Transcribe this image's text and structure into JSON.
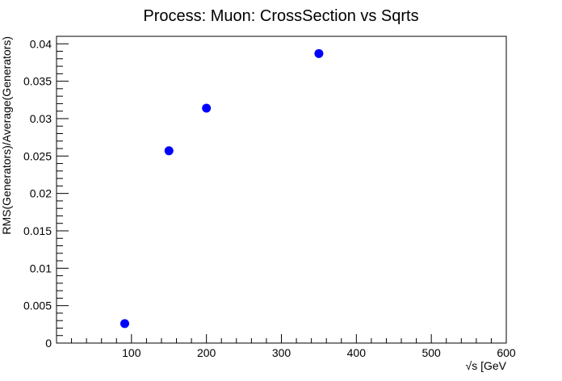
{
  "chart_data": {
    "type": "scatter",
    "title": "Process: Muon: CrossSection vs Sqrts",
    "xlabel": "√s [GeV",
    "ylabel": "RMS(Generators)/Average(Generators)",
    "xlim": [
      0,
      600
    ],
    "ylim": [
      0,
      0.041
    ],
    "x_ticks": [
      100,
      200,
      300,
      400,
      500,
      600
    ],
    "y_ticks": [
      0,
      0.005,
      0.01,
      0.015,
      0.02,
      0.025,
      0.03,
      0.035,
      0.04
    ],
    "x_tick_labels": [
      "100",
      "200",
      "300",
      "400",
      "500",
      "600"
    ],
    "y_tick_labels": [
      "0",
      "0.005",
      "0.01",
      "0.015",
      "0.02",
      "0.025",
      "0.03",
      "0.035",
      "0.04"
    ],
    "grid": false,
    "marker_color": "#0000ff",
    "series": [
      {
        "x": [
          91,
          150,
          200,
          350
        ],
        "y": [
          0.0026,
          0.0257,
          0.0314,
          0.0387
        ]
      }
    ]
  }
}
